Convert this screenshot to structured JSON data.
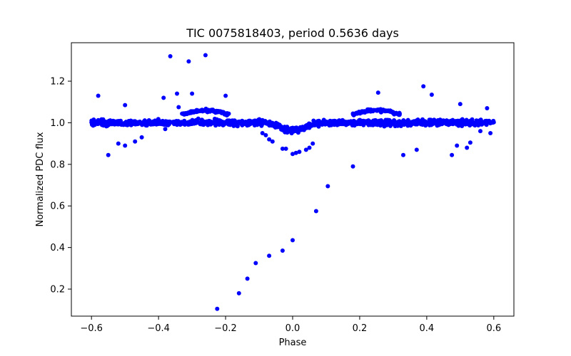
{
  "chart_data": {
    "type": "scatter",
    "title": "TIC 0075818403, period 0.5636 days",
    "xlabel": "Phase",
    "ylabel": "Normalized PDC flux",
    "xlim": [
      -0.66,
      0.66
    ],
    "ylim": [
      0.07,
      1.385
    ],
    "xticks": [
      "−0.6",
      "−0.4",
      "−0.2",
      "0.0",
      "0.2",
      "0.4",
      "0.6"
    ],
    "xtick_values": [
      -0.6,
      -0.4,
      -0.2,
      0.0,
      0.2,
      0.4,
      0.6
    ],
    "yticks": [
      "0.2",
      "0.4",
      "0.6",
      "0.8",
      "1.0",
      "1.2"
    ],
    "ytick_values": [
      0.2,
      0.4,
      0.6,
      0.8,
      1.0,
      1.2
    ],
    "grid": false,
    "color": "#0000ff",
    "series": [
      {
        "x": [
          -0.365,
          -0.31,
          -0.26,
          -0.345,
          -0.3,
          -0.385,
          -0.58,
          -0.2,
          -0.5,
          -0.52,
          -0.55,
          -0.5,
          -0.47,
          -0.45,
          -0.34,
          -0.38,
          0.255,
          0.39,
          0.415,
          0.37,
          0.33,
          0.5,
          0.49,
          0.475,
          0.53,
          0.52,
          0.105,
          0.18,
          0.07,
          0.0,
          -0.03,
          -0.07,
          -0.11,
          -0.135,
          -0.16,
          -0.225,
          -0.03,
          -0.02,
          0.0,
          0.01,
          0.02,
          0.04,
          0.05,
          0.06,
          -0.08,
          -0.07,
          -0.06,
          -0.09,
          0.58,
          0.59,
          0.56,
          -0.59,
          0.45
        ],
        "y": [
          1.32,
          1.295,
          1.325,
          1.14,
          1.14,
          1.12,
          1.13,
          1.13,
          1.085,
          0.9,
          0.845,
          0.89,
          0.91,
          0.93,
          1.075,
          0.97,
          1.145,
          1.175,
          1.135,
          0.87,
          0.845,
          1.09,
          0.89,
          0.845,
          0.905,
          0.88,
          0.695,
          0.79,
          0.575,
          0.435,
          0.385,
          0.36,
          0.325,
          0.25,
          0.18,
          0.105,
          0.875,
          0.875,
          0.85,
          0.855,
          0.86,
          0.87,
          0.88,
          0.9,
          0.94,
          0.92,
          0.91,
          0.95,
          1.07,
          0.95,
          0.96,
          0.99,
          1.01
        ]
      }
    ]
  }
}
